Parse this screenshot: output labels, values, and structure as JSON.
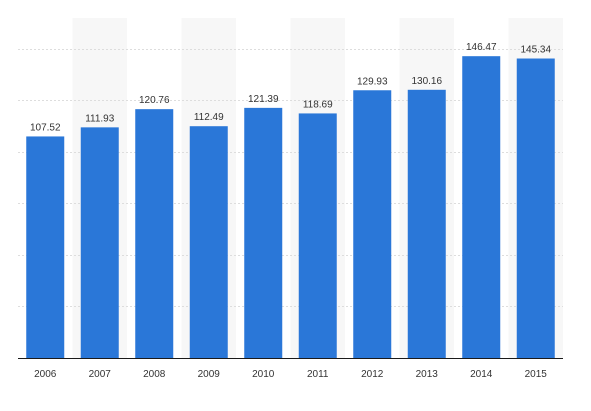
{
  "chart_data": {
    "type": "bar",
    "categories": [
      "2006",
      "2007",
      "2008",
      "2009",
      "2010",
      "2011",
      "2012",
      "2013",
      "2014",
      "2015"
    ],
    "values": [
      107.52,
      111.93,
      120.76,
      112.49,
      121.39,
      118.69,
      129.93,
      130.16,
      146.47,
      145.34
    ],
    "value_labels": [
      "107.52",
      "111.93",
      "120.76",
      "112.49",
      "121.39",
      "118.69",
      "129.93",
      "130.16",
      "146.47",
      "145.34"
    ],
    "ylim": [
      0,
      165
    ],
    "grid": true,
    "alternating_column_bands": true,
    "colors": {
      "bar": "#2a77d8",
      "band": "#f7f7f7",
      "grid": "#dddddd",
      "axis": "#1a1a1a",
      "text": "#333333"
    }
  }
}
